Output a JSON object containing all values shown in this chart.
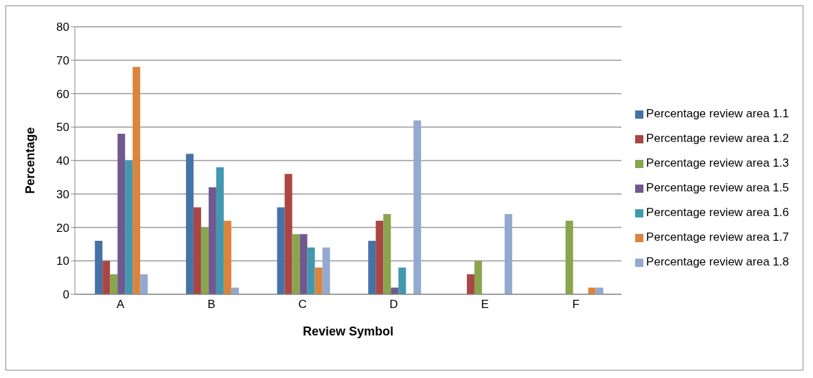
{
  "chart_data": {
    "type": "bar",
    "xlabel": "Review Symbol",
    "ylabel": "Percentage",
    "categories": [
      "A",
      "B",
      "C",
      "D",
      "E",
      "F"
    ],
    "series": [
      {
        "name": "Percentage review area 1.1",
        "color": "#4572a7",
        "values": [
          16,
          42,
          26,
          16,
          0,
          0
        ]
      },
      {
        "name": "Percentage review area 1.2",
        "color": "#aa4643",
        "values": [
          10,
          26,
          36,
          22,
          6,
          0
        ]
      },
      {
        "name": "Percentage review area 1.3",
        "color": "#89a54e",
        "values": [
          6,
          20,
          18,
          24,
          10,
          22
        ]
      },
      {
        "name": "Percentage review area 1.5",
        "color": "#71588f",
        "values": [
          48,
          32,
          18,
          2,
          0,
          0
        ]
      },
      {
        "name": "Percentage review area 1.6",
        "color": "#4198af",
        "values": [
          40,
          38,
          14,
          8,
          0,
          0
        ]
      },
      {
        "name": "Percentage review area 1.7",
        "color": "#db843d",
        "values": [
          68,
          22,
          8,
          0,
          0,
          2
        ]
      },
      {
        "name": "Percentage review area 1.8",
        "color": "#93a9cf",
        "values": [
          6,
          2,
          14,
          52,
          24,
          2
        ]
      }
    ],
    "ylim": [
      0,
      80
    ],
    "yticks": [
      0,
      10,
      20,
      30,
      40,
      50,
      60,
      70,
      80
    ],
    "grid": "y",
    "legend": "right"
  }
}
